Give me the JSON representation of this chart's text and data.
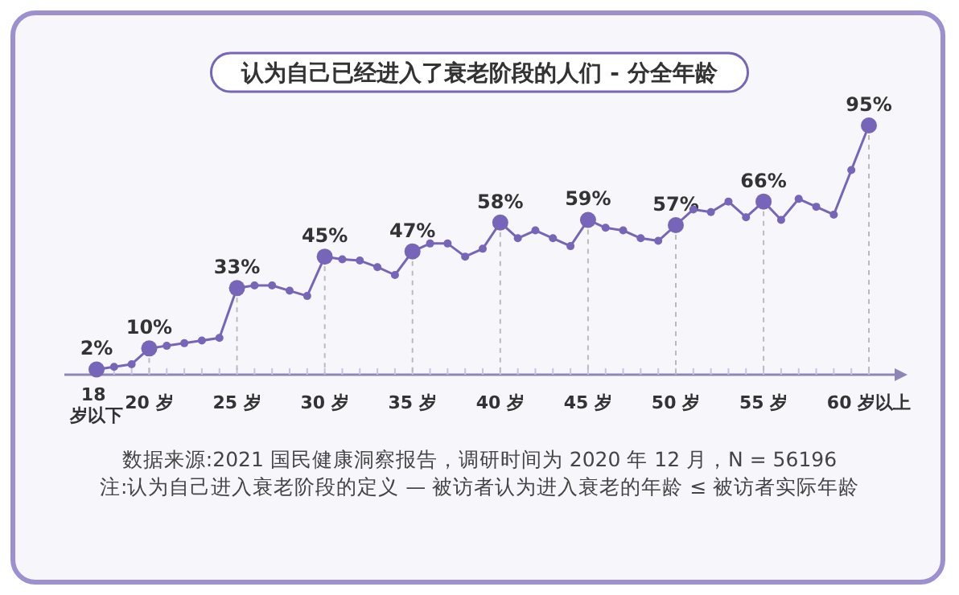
{
  "chart_data": {
    "type": "line",
    "title": "认为自己已经进入了衰老阶段的人们 - 分全年龄",
    "categories": [
      "18 岁以下",
      null,
      null,
      "20 岁",
      null,
      null,
      null,
      null,
      "25 岁",
      null,
      null,
      null,
      null,
      "30 岁",
      null,
      null,
      null,
      null,
      "35 岁",
      null,
      null,
      null,
      null,
      "40 岁",
      null,
      null,
      null,
      null,
      "45 岁",
      null,
      null,
      null,
      null,
      "50 岁",
      null,
      null,
      null,
      null,
      "55 岁",
      null,
      null,
      null,
      null,
      null,
      "60 岁以上"
    ],
    "series": [
      {
        "color": "#7665b8",
        "values": [
          2,
          3,
          4,
          10,
          11,
          12,
          13,
          14,
          33,
          34,
          34,
          32,
          30,
          45,
          44,
          43.5,
          41,
          38,
          47,
          50,
          50,
          45,
          48,
          58,
          52,
          55,
          52,
          49,
          59,
          56,
          55,
          52,
          51,
          57,
          63,
          62,
          66,
          60,
          66,
          59,
          67,
          64,
          61,
          78,
          95
        ],
        "value_labels": [
          "2%",
          null,
          null,
          "10%",
          null,
          null,
          null,
          null,
          "33%",
          null,
          null,
          null,
          null,
          "45%",
          null,
          null,
          null,
          null,
          "47%",
          null,
          null,
          null,
          null,
          "58%",
          null,
          null,
          null,
          null,
          "59%",
          null,
          null,
          null,
          null,
          "57%",
          null,
          null,
          null,
          null,
          "66%",
          null,
          null,
          null,
          null,
          null,
          "95%"
        ]
      }
    ],
    "marker": "circle",
    "grid": "x",
    "annotations": [
      "数据来源:2021 国民健康洞察报告，调研时间为 2020 年 12 月，N = 56196",
      "注:认为自己进入衰老阶段的定义 — 被访者认为进入衰老的年龄 ≤ 被访者实际年龄"
    ]
  }
}
